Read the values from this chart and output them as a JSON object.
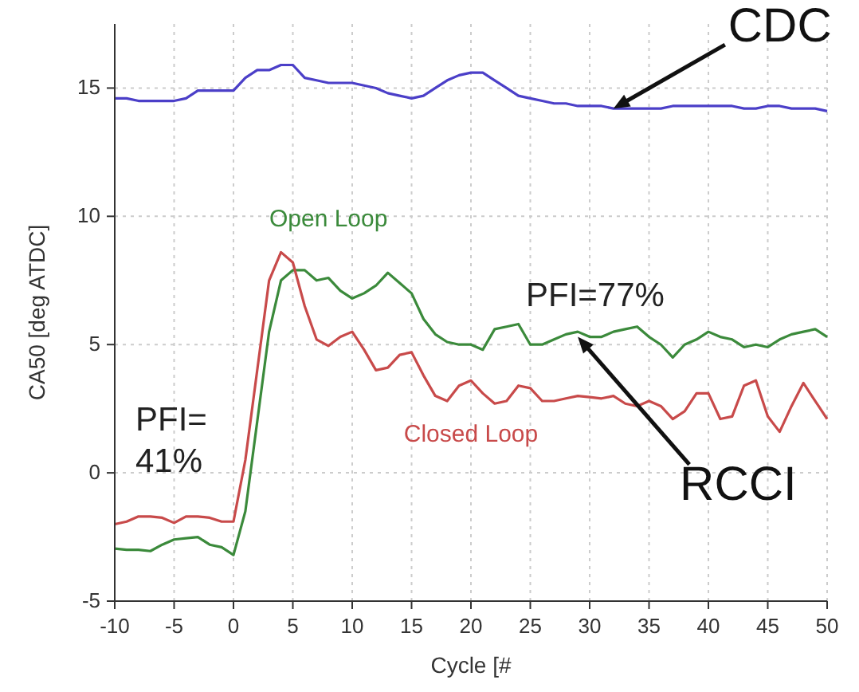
{
  "chart_data": {
    "type": "line",
    "xlabel": "Cycle [#",
    "ylabel": "CA50 [deg ATDC]",
    "x": [
      -10,
      -9,
      -8,
      -7,
      -6,
      -5,
      -4,
      -3,
      -2,
      -1,
      0,
      1,
      2,
      3,
      4,
      5,
      6,
      7,
      8,
      9,
      10,
      11,
      12,
      13,
      14,
      15,
      16,
      17,
      18,
      19,
      20,
      21,
      22,
      23,
      24,
      25,
      26,
      27,
      28,
      29,
      30,
      31,
      32,
      33,
      34,
      35,
      36,
      37,
      38,
      39,
      40,
      41,
      42,
      43,
      44,
      45,
      46,
      47,
      48,
      49,
      50
    ],
    "series": [
      {
        "color": "#4b3fc8",
        "values": [
          14.6,
          14.6,
          14.5,
          14.5,
          14.5,
          14.5,
          14.6,
          14.9,
          14.9,
          14.9,
          14.9,
          15.4,
          15.7,
          15.7,
          15.9,
          15.9,
          15.4,
          15.3,
          15.2,
          15.2,
          15.2,
          15.1,
          15.0,
          14.8,
          14.7,
          14.6,
          14.7,
          15.0,
          15.3,
          15.5,
          15.6,
          15.6,
          15.3,
          15.0,
          14.7,
          14.6,
          14.5,
          14.4,
          14.4,
          14.3,
          14.3,
          14.3,
          14.2,
          14.2,
          14.2,
          14.2,
          14.2,
          14.3,
          14.3,
          14.3,
          14.3,
          14.3,
          14.3,
          14.2,
          14.2,
          14.3,
          14.3,
          14.2,
          14.2,
          14.2,
          14.1
        ]
      },
      {
        "name": "Open Loop",
        "color": "#3b8a3b",
        "values": [
          -2.95,
          -3.0,
          -3.0,
          -3.05,
          -2.8,
          -2.6,
          -2.55,
          -2.5,
          -2.8,
          -2.9,
          -3.2,
          -1.5,
          2.0,
          5.5,
          7.5,
          7.9,
          7.9,
          7.5,
          7.6,
          7.1,
          6.8,
          7.0,
          7.3,
          7.8,
          7.4,
          7.0,
          6.0,
          5.4,
          5.1,
          5.0,
          5.0,
          4.8,
          5.6,
          5.7,
          5.8,
          5.0,
          5.0,
          5.2,
          5.4,
          5.5,
          5.3,
          5.3,
          5.5,
          5.6,
          5.7,
          5.3,
          5.0,
          4.5,
          5.0,
          5.2,
          5.5,
          5.3,
          5.2,
          4.9,
          5.0,
          4.9,
          5.2,
          5.4,
          5.5,
          5.6,
          5.3
        ]
      },
      {
        "name": "Closed Loop",
        "color": "#c84a4a",
        "values": [
          -2.0,
          -1.9,
          -1.7,
          -1.7,
          -1.75,
          -1.95,
          -1.7,
          -1.7,
          -1.75,
          -1.9,
          -1.9,
          0.5,
          4.0,
          7.5,
          8.6,
          8.2,
          6.5,
          5.2,
          4.95,
          5.3,
          5.5,
          4.8,
          4.0,
          4.1,
          4.6,
          4.7,
          3.8,
          3.0,
          2.8,
          3.4,
          3.6,
          3.1,
          2.7,
          2.8,
          3.4,
          3.3,
          2.8,
          2.8,
          2.9,
          3.0,
          2.95,
          2.9,
          3.0,
          2.7,
          2.6,
          2.8,
          2.6,
          2.1,
          2.4,
          3.1,
          3.1,
          2.1,
          2.2,
          3.4,
          3.6,
          2.2,
          1.6,
          2.6,
          3.5,
          2.8,
          2.1
        ]
      }
    ],
    "xlim": [
      -10,
      50
    ],
    "xticks": [
      -10,
      -5,
      0,
      5,
      10,
      15,
      20,
      25,
      30,
      35,
      40,
      45,
      50
    ],
    "ylim": [
      -5,
      17.5
    ],
    "yticks": [
      -5,
      0,
      5,
      10,
      15
    ],
    "grid": true,
    "legend": false,
    "line_style": "solid",
    "marker": "none",
    "annotations": [
      {
        "text": "CDC",
        "x": 32,
        "y": 14.2
      },
      {
        "text": "RCCI",
        "x": 29,
        "y": 5.3
      },
      "PFI= 41%",
      "PFI=77%"
    ]
  }
}
